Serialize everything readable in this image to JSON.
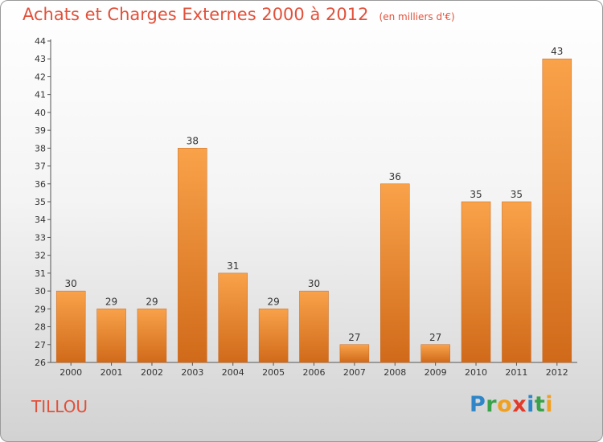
{
  "chart_data": {
    "type": "bar",
    "title": "Achats et Charges Externes 2000 à 2012",
    "subtitle": "(en milliers d'€)",
    "categories": [
      "2000",
      "2001",
      "2002",
      "2003",
      "2004",
      "2005",
      "2006",
      "2007",
      "2008",
      "2009",
      "2010",
      "2011",
      "2012"
    ],
    "values": [
      30,
      29,
      29,
      38,
      31,
      29,
      30,
      27,
      36,
      27,
      35,
      35,
      43
    ],
    "ylim": [
      26,
      44
    ],
    "yticks": [
      26,
      27,
      28,
      29,
      30,
      31,
      32,
      33,
      34,
      35,
      36,
      37,
      38,
      39,
      40,
      41,
      42,
      43,
      44
    ],
    "grid": false,
    "bar_color": "#f0913a"
  },
  "location": "TILLOU",
  "brand": {
    "letters": [
      "P",
      "r",
      "o",
      "x",
      "i",
      "t",
      "i"
    ],
    "colors": [
      "#2e86c8",
      "#3aa24a",
      "#f0a020",
      "#e23a2a",
      "#2e86c8",
      "#3aa24a",
      "#f0a020"
    ]
  }
}
